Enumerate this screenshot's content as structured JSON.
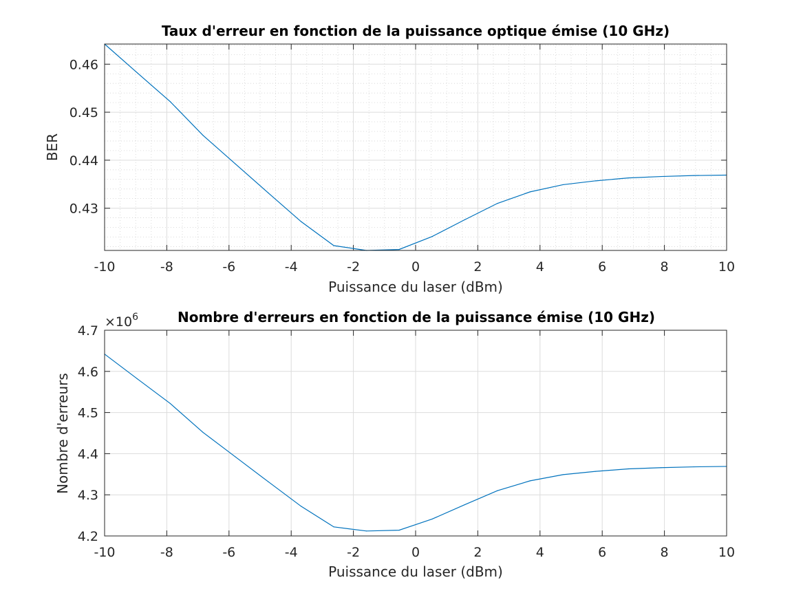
{
  "chart_data": [
    {
      "type": "line",
      "title": "Taux d'erreur en fonction de la puissance optique émise (10 GHz)",
      "xlabel": "Puissance du laser (dBm)",
      "ylabel": "BER",
      "xlim": [
        -10,
        10
      ],
      "ylim": [
        0.4212,
        0.4642
      ],
      "xticks": [
        -10,
        -8,
        -6,
        -4,
        -2,
        0,
        2,
        4,
        6,
        8,
        10
      ],
      "xtick_labels": [
        "-10",
        "-8",
        "-6",
        "-4",
        "-2",
        "0",
        "2",
        "4",
        "6",
        "8",
        "10"
      ],
      "yticks": [
        0.43,
        0.44,
        0.45,
        0.46
      ],
      "ytick_labels": [
        "0.43",
        "0.44",
        "0.45",
        "0.46"
      ],
      "grid": true,
      "minor_grid": true,
      "line_color": "#0072bd",
      "series": [
        {
          "x": [
            -10,
            -8.95,
            -7.89,
            -6.84,
            -5.79,
            -4.74,
            -3.68,
            -2.63,
            -1.58,
            -0.53,
            0.53,
            1.58,
            2.63,
            3.68,
            4.74,
            5.79,
            6.84,
            7.89,
            8.95,
            10
          ],
          "values": [
            0.4642,
            0.4582,
            0.4522,
            0.4452,
            0.4392,
            0.4332,
            0.4272,
            0.4222,
            0.4212,
            0.4214,
            0.4241,
            0.4276,
            0.431,
            0.4334,
            0.4349,
            0.4357,
            0.4363,
            0.4366,
            0.4368,
            0.4369
          ]
        }
      ]
    },
    {
      "type": "line",
      "title": "Nombre d'erreurs en fonction de la puissance émise (10 GHz)",
      "xlabel": "Puissance du laser (dBm)",
      "ylabel": "Nombre d'erreurs",
      "exponent_prefix": "×10",
      "exponent_power": "6",
      "xlim": [
        -10,
        10
      ],
      "ylim": [
        4.2,
        4.7
      ],
      "xticks": [
        -10,
        -8,
        -6,
        -4,
        -2,
        0,
        2,
        4,
        6,
        8,
        10
      ],
      "xtick_labels": [
        "-10",
        "-8",
        "-6",
        "-4",
        "-2",
        "0",
        "2",
        "4",
        "6",
        "8",
        "10"
      ],
      "yticks": [
        4.2,
        4.3,
        4.4,
        4.5,
        4.6,
        4.7
      ],
      "ytick_labels": [
        "4.2",
        "4.3",
        "4.4",
        "4.5",
        "4.6",
        "4.7"
      ],
      "grid": true,
      "minor_grid": false,
      "line_color": "#0072bd",
      "series": [
        {
          "x": [
            -10,
            -8.95,
            -7.89,
            -6.84,
            -5.79,
            -4.74,
            -3.68,
            -2.63,
            -1.58,
            -0.53,
            0.53,
            1.58,
            2.63,
            3.68,
            4.74,
            5.79,
            6.84,
            7.89,
            8.95,
            10
          ],
          "values": [
            4.642,
            4.582,
            4.522,
            4.452,
            4.392,
            4.332,
            4.272,
            4.222,
            4.212,
            4.214,
            4.241,
            4.276,
            4.31,
            4.334,
            4.349,
            4.357,
            4.363,
            4.366,
            4.368,
            4.369
          ]
        }
      ]
    }
  ]
}
